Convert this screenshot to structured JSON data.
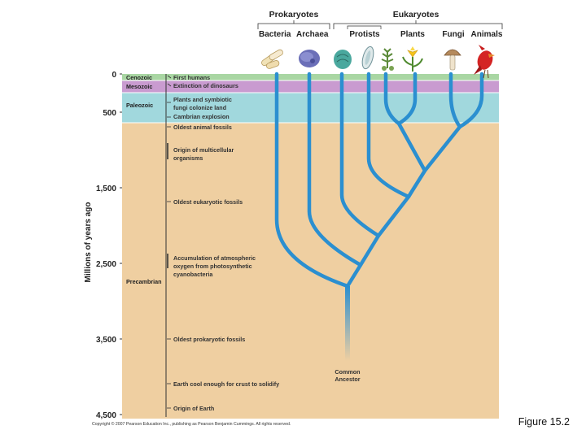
{
  "header": {
    "prokaryotes": "Prokaryotes",
    "eukaryotes": "Eukaryotes",
    "groups": [
      "Bacteria",
      "Archaea",
      "Protists",
      "Plants",
      "Fungi",
      "Animals"
    ]
  },
  "eras": [
    "Cenozoic",
    "Mesozoic",
    "Paleozoic",
    "Precambrian"
  ],
  "axis": {
    "label": "Millions of years ago",
    "ticks": [
      "0",
      "500",
      "1,500",
      "2,500",
      "3,500",
      "4,500"
    ]
  },
  "events": {
    "e1": "First humans",
    "e2": "Extinction of dinosaurs",
    "e3": [
      "Plants and symbiotic",
      "fungi colonize land"
    ],
    "e4": "Cambrian explosion",
    "e5": "Oldest animal fossils",
    "e6": [
      "Origin of multicellular",
      "organisms"
    ],
    "e7": "Oldest eukaryotic fossils",
    "e8": [
      "Accumulation of atmospheric",
      "oxygen from photosynthetic",
      "cyanobacteria"
    ],
    "e9": "Oldest prokaryotic fossils",
    "e10": "Earth cool enough for crust to solidify",
    "e11": "Origin of Earth"
  },
  "ancestor": [
    "Common",
    "Ancestor"
  ],
  "copyright": "Copyright © 2007 Pearson Education Inc., publishing as Pearson Benjamin Cummings. All rights reserved.",
  "figure_label": "Figure 15.2",
  "icons": [
    "bacteria-icon",
    "archaea-icon",
    "protist-icon",
    "protist-diatom-icon",
    "plant-moss-icon",
    "plant-flower-icon",
    "fungi-mushroom-icon",
    "animal-bird-icon"
  ]
}
